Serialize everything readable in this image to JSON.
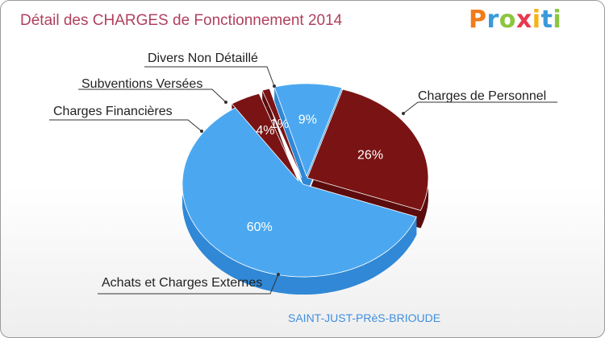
{
  "title": "Détail des CHARGES de Fonctionnement 2014",
  "logo": {
    "letters": [
      "P",
      "r",
      "o",
      "x",
      "i",
      "t",
      "i"
    ],
    "colors": [
      "#f07c1a",
      "#3a9ad9",
      "#8cc63f",
      "#e8384f",
      "#f5b31a",
      "#3a9ad9",
      "#8cc63f"
    ]
  },
  "city": "SAINT-JUST-PRèS-BRIOUDE",
  "chart_data": {
    "type": "pie",
    "title": "Détail des CHARGES de Fonctionnement 2014",
    "slices": [
      {
        "label": "Charges de Personnel",
        "value": 26,
        "pct_label": "26%",
        "color": "#7a1414",
        "side": "#5c0c0c",
        "label_side": "right",
        "pct_color": "#ffffff"
      },
      {
        "label": "Achats et Charges Externes",
        "value": 60,
        "pct_label": "60%",
        "color": "#4ba8f0",
        "side": "#3088d6",
        "label_side": "left",
        "pct_color": "#ffffff"
      },
      {
        "label": "Charges Financières",
        "value": 4,
        "pct_label": "4%",
        "color": "#7a1414",
        "side": "#5c0c0c",
        "label_side": "left",
        "pct_color": "#ffffff"
      },
      {
        "label": "Subventions Versées",
        "value": 1,
        "pct_label": "1%",
        "color": "#7a1414",
        "side": "#5c0c0c",
        "label_side": "left",
        "pct_color": "#ffffff"
      },
      {
        "label": "Divers Non Détaillé",
        "value": 9,
        "pct_label": "9%",
        "color": "#4ba8f0",
        "side": "#3088d6",
        "label_side": "left",
        "pct_color": "#ffffff"
      }
    ]
  }
}
